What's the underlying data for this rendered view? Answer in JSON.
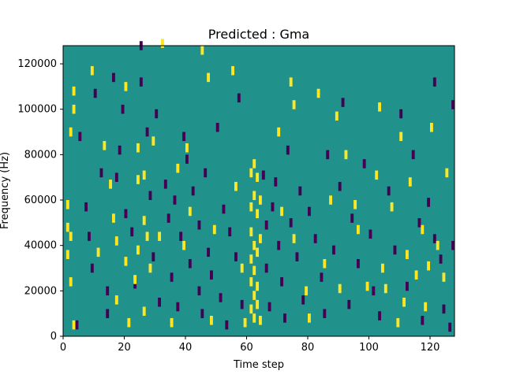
{
  "chart_data": {
    "type": "heatmap",
    "title": "Predicted : Gma",
    "xlabel": "Time step",
    "ylabel": "Frequency (Hz)",
    "xlim": [
      0,
      128
    ],
    "ylim": [
      0,
      128000
    ],
    "x_ticks": [
      0,
      20,
      40,
      60,
      80,
      100,
      120
    ],
    "y_ticks": [
      0,
      20000,
      40000,
      60000,
      80000,
      100000,
      120000
    ],
    "x_tick_labels": [
      "0",
      "20",
      "40",
      "60",
      "80",
      "100",
      "120"
    ],
    "y_tick_labels": [
      "0",
      "20000",
      "40000",
      "60000",
      "80000",
      "100000",
      "120000"
    ],
    "grid": false,
    "colormap": "viridis",
    "colors": {
      "background": "#21918c",
      "low": "#440154",
      "high": "#fde725"
    },
    "levels": {
      "background": 0,
      "low": -1,
      "high": 1
    },
    "bin_width_x": 1,
    "bin_height_y": 4000,
    "high_cells": [
      [
        1,
        46000
      ],
      [
        3,
        106000
      ],
      [
        3,
        98000
      ],
      [
        2,
        88000
      ],
      [
        1,
        56000
      ],
      [
        2,
        42000
      ],
      [
        1,
        34000
      ],
      [
        2,
        22000
      ],
      [
        3,
        3000
      ],
      [
        9,
        115000
      ],
      [
        11,
        35000
      ],
      [
        13,
        82000
      ],
      [
        15,
        65000
      ],
      [
        16,
        50000
      ],
      [
        17,
        40000
      ],
      [
        17,
        14000
      ],
      [
        20,
        108000
      ],
      [
        20,
        31000
      ],
      [
        21,
        4000
      ],
      [
        23,
        23000
      ],
      [
        24,
        81000
      ],
      [
        24,
        67000
      ],
      [
        24,
        36000
      ],
      [
        26,
        69000
      ],
      [
        26,
        49000
      ],
      [
        27,
        42000
      ],
      [
        26,
        9000
      ],
      [
        28,
        28000
      ],
      [
        29,
        84000
      ],
      [
        31,
        42000
      ],
      [
        32,
        127000
      ],
      [
        35,
        4000
      ],
      [
        37,
        72000
      ],
      [
        39,
        38000
      ],
      [
        40,
        81000
      ],
      [
        41,
        53000
      ],
      [
        45,
        124000
      ],
      [
        47,
        112000
      ],
      [
        48,
        5000
      ],
      [
        49,
        45000
      ],
      [
        55,
        115000
      ],
      [
        56,
        64000
      ],
      [
        58,
        28000
      ],
      [
        59,
        4000
      ],
      [
        61,
        70000
      ],
      [
        61,
        55000
      ],
      [
        61,
        44000
      ],
      [
        61,
        32000
      ],
      [
        61,
        22000
      ],
      [
        61,
        10000
      ],
      [
        62,
        74000
      ],
      [
        62,
        60000
      ],
      [
        62,
        38000
      ],
      [
        62,
        27000
      ],
      [
        62,
        16000
      ],
      [
        62,
        6000
      ],
      [
        63,
        68000
      ],
      [
        63,
        52000
      ],
      [
        63,
        35000
      ],
      [
        63,
        20000
      ],
      [
        63,
        12000
      ],
      [
        64,
        58000
      ],
      [
        64,
        41000
      ],
      [
        64,
        5000
      ],
      [
        70,
        88000
      ],
      [
        71,
        53000
      ],
      [
        74,
        110000
      ],
      [
        75,
        41000
      ],
      [
        75,
        100000
      ],
      [
        79,
        18000
      ],
      [
        80,
        6000
      ],
      [
        83,
        105000
      ],
      [
        85,
        30000
      ],
      [
        87,
        58000
      ],
      [
        89,
        95000
      ],
      [
        90,
        19000
      ],
      [
        92,
        78000
      ],
      [
        95,
        56000
      ],
      [
        96,
        45000
      ],
      [
        99,
        20000
      ],
      [
        102,
        69000
      ],
      [
        103,
        99000
      ],
      [
        104,
        28000
      ],
      [
        105,
        19000
      ],
      [
        107,
        55000
      ],
      [
        109,
        4000
      ],
      [
        110,
        86000
      ],
      [
        111,
        13000
      ],
      [
        112,
        34000
      ],
      [
        113,
        66000
      ],
      [
        115,
        25000
      ],
      [
        117,
        45000
      ],
      [
        118,
        11000
      ],
      [
        119,
        29000
      ],
      [
        120,
        90000
      ],
      [
        122,
        38000
      ],
      [
        124,
        24000
      ],
      [
        125,
        70000
      ]
    ],
    "low_cells": [
      [
        4,
        3000
      ],
      [
        5,
        86000
      ],
      [
        7,
        55000
      ],
      [
        8,
        42000
      ],
      [
        9,
        28000
      ],
      [
        10,
        105000
      ],
      [
        12,
        70000
      ],
      [
        14,
        18000
      ],
      [
        14,
        8000
      ],
      [
        16,
        112000
      ],
      [
        17,
        68000
      ],
      [
        18,
        80000
      ],
      [
        19,
        98000
      ],
      [
        20,
        52000
      ],
      [
        22,
        44000
      ],
      [
        23,
        21000
      ],
      [
        25,
        126000
      ],
      [
        25,
        110000
      ],
      [
        27,
        88000
      ],
      [
        28,
        60000
      ],
      [
        29,
        33000
      ],
      [
        30,
        96000
      ],
      [
        31,
        13000
      ],
      [
        33,
        65000
      ],
      [
        34,
        50000
      ],
      [
        35,
        24000
      ],
      [
        36,
        58000
      ],
      [
        37,
        11000
      ],
      [
        38,
        42000
      ],
      [
        39,
        86000
      ],
      [
        40,
        76000
      ],
      [
        41,
        30000
      ],
      [
        42,
        62000
      ],
      [
        44,
        47000
      ],
      [
        44,
        18000
      ],
      [
        45,
        8000
      ],
      [
        46,
        70000
      ],
      [
        47,
        35000
      ],
      [
        48,
        25000
      ],
      [
        50,
        90000
      ],
      [
        51,
        15000
      ],
      [
        52,
        54000
      ],
      [
        53,
        3000
      ],
      [
        54,
        44000
      ],
      [
        56,
        33000
      ],
      [
        57,
        103000
      ],
      [
        58,
        12000
      ],
      [
        65,
        69000
      ],
      [
        66,
        47000
      ],
      [
        66,
        28000
      ],
      [
        67,
        11000
      ],
      [
        68,
        55000
      ],
      [
        69,
        66000
      ],
      [
        70,
        38000
      ],
      [
        71,
        22000
      ],
      [
        72,
        6000
      ],
      [
        73,
        80000
      ],
      [
        74,
        48000
      ],
      [
        76,
        33000
      ],
      [
        77,
        62000
      ],
      [
        78,
        14000
      ],
      [
        80,
        53000
      ],
      [
        82,
        41000
      ],
      [
        84,
        24000
      ],
      [
        85,
        8000
      ],
      [
        86,
        78000
      ],
      [
        88,
        36000
      ],
      [
        90,
        64000
      ],
      [
        91,
        101000
      ],
      [
        93,
        12000
      ],
      [
        94,
        50000
      ],
      [
        96,
        30000
      ],
      [
        98,
        74000
      ],
      [
        100,
        43000
      ],
      [
        101,
        18000
      ],
      [
        103,
        7000
      ],
      [
        106,
        62000
      ],
      [
        108,
        36000
      ],
      [
        110,
        96000
      ],
      [
        112,
        20000
      ],
      [
        114,
        78000
      ],
      [
        116,
        48000
      ],
      [
        117,
        5000
      ],
      [
        119,
        57000
      ],
      [
        121,
        41000
      ],
      [
        121,
        110000
      ],
      [
        123,
        32000
      ],
      [
        124,
        10000
      ],
      [
        126,
        2000
      ],
      [
        127,
        38000
      ],
      [
        127,
        100000
      ]
    ]
  }
}
